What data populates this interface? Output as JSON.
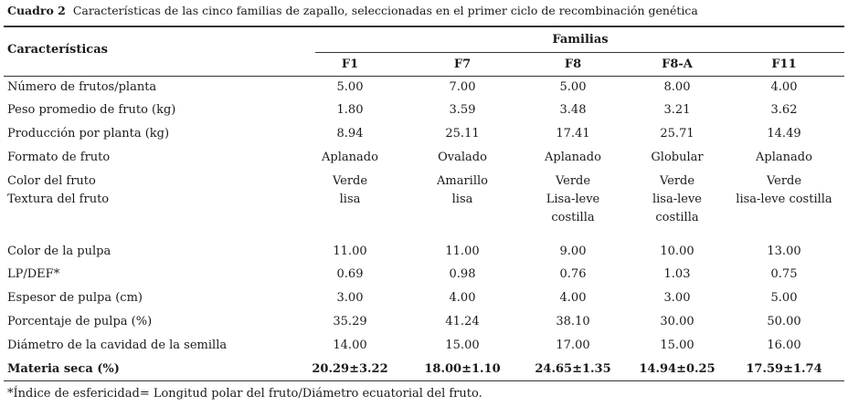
{
  "caption": {
    "label": "Cuadro 2",
    "text": "Características de las cinco familias de zapallo, seleccionadas en el primer ciclo de recombinación genética"
  },
  "table": {
    "row_header": "Características",
    "group_header": "Familias",
    "columns": [
      "F1",
      "F7",
      "F8",
      "F8-A",
      "F11"
    ],
    "rows": [
      [
        "Número de frutos/planta",
        "5.00",
        "7.00",
        "5.00",
        "8.00",
        "4.00"
      ],
      [
        "Peso promedio de fruto (kg)",
        "1.80",
        "3.59",
        "3.48",
        "3.21",
        "3.62"
      ],
      [
        "Producción por planta (kg)",
        "8.94",
        "25.11",
        "17.41",
        "25.71",
        "14.49"
      ],
      [
        "Formato de fruto",
        "Aplanado",
        "Ovalado",
        "Aplanado",
        "Globular",
        "Aplanado"
      ],
      [
        "Color del fruto",
        "Verde",
        "Amarillo",
        "Verde",
        "Verde",
        "Verde"
      ],
      [
        "Textura del fruto",
        "lisa",
        "lisa",
        "Lisa-leve costilla",
        "lisa-leve costilla",
        "lisa-leve costilla"
      ],
      [
        "Color de la pulpa",
        "11.00",
        "11.00",
        "9.00",
        "10.00",
        "13.00"
      ],
      [
        "LP/DEF*",
        "0.69",
        "0.98",
        "0.76",
        "1.03",
        "0.75"
      ],
      [
        "Espesor de pulpa (cm)",
        "3.00",
        "4.00",
        "4.00",
        "3.00",
        "5.00"
      ],
      [
        "Porcentaje de pulpa (%)",
        "35.29",
        "41.24",
        "38.10",
        "30.00",
        "50.00"
      ],
      [
        "Diámetro de la cavidad de la semilla",
        "14.00",
        "15.00",
        "17.00",
        "15.00",
        "16.00"
      ],
      [
        "Materia seca (%)",
        "20.29±3.22",
        "18.00±1.10",
        "24.65±1.35",
        "14.94±0.25",
        "17.59±1.74"
      ]
    ]
  },
  "footnote": "*Índice de esfericidad= Longitud polar del fruto/Diámetro ecuatorial del fruto."
}
